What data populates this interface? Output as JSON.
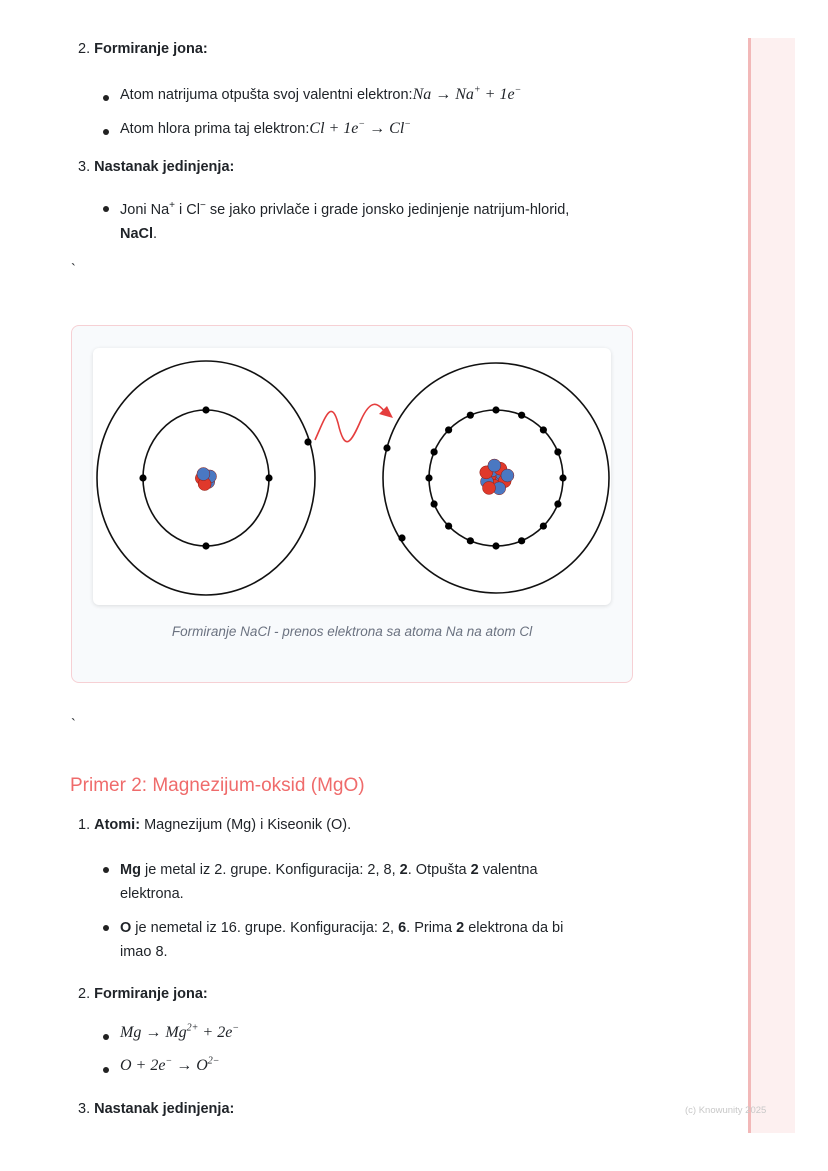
{
  "section1": {
    "item2": {
      "num": "2.",
      "title": "Formiranje jona:",
      "bullets": [
        {
          "text": "Atom natrijuma otpušta svoj valentni elektron:",
          "math": "Na → Na",
          "sup": "+",
          "math2": " + 1e",
          "sup2": "−"
        },
        {
          "text": "Atom hlora prima taj elektron:",
          "math": "Cl + 1e",
          "sup": "−",
          "math2": " → Cl",
          "sup2": "−"
        }
      ]
    },
    "item3": {
      "num": "3.",
      "title": "Nastanak jedinjenja:",
      "bullet": {
        "p1": "Joni Na",
        "sup1": "+",
        "p2": " i Cl",
        "sup2": "−",
        "p3": " se jako privlače i grade jonsko jedinjenje natrijum-hlorid,",
        "bold": "NaCl",
        "end": "."
      }
    },
    "backtick": "`"
  },
  "figure": {
    "caption": "Formiranje NaCl - prenos elektrona sa atoma Na na atom Cl",
    "arrow_color": "#e53e3e",
    "proton_color": "#e0392b",
    "neutron_color": "#4a78c2"
  },
  "backtick2": "`",
  "section2": {
    "heading": "Primer 2: Magnezijum-oksid (MgO)",
    "heading_color": "#ef6b6b",
    "item1": {
      "num": "1.",
      "title": "Atomi:",
      "text": " Magnezijum (Mg) i Kiseonik (O).",
      "bullets": [
        {
          "b1": "Mg",
          "t1": " je metal iz 2. grupe. Konfiguracija: 2, 8, ",
          "b2": "2",
          "t2": ". Otpušta ",
          "b3": "2",
          "t3": " valentna",
          "line2": "elektrona."
        },
        {
          "b1": "O",
          "t1": " je nemetal iz 16. grupe. Konfiguracija: 2, ",
          "b2": "6",
          "t2": ". Prima ",
          "b3": "2",
          "t3": " elektrona da bi",
          "line2": "imao 8."
        }
      ]
    },
    "item2": {
      "num": "2.",
      "title": "Formiranje jona:",
      "bullets": [
        {
          "math": "Mg → Mg",
          "sup": "2+",
          "math2": " + 2e",
          "sup2": "−"
        },
        {
          "math": "O + 2e",
          "sup": "−",
          "math2": " → O",
          "sup2": "2−"
        }
      ]
    },
    "item3": {
      "num": "3.",
      "title": "Nastanak jedinjenja:"
    }
  },
  "footer": {
    "copyright": "(c) Knowunity 2025"
  }
}
